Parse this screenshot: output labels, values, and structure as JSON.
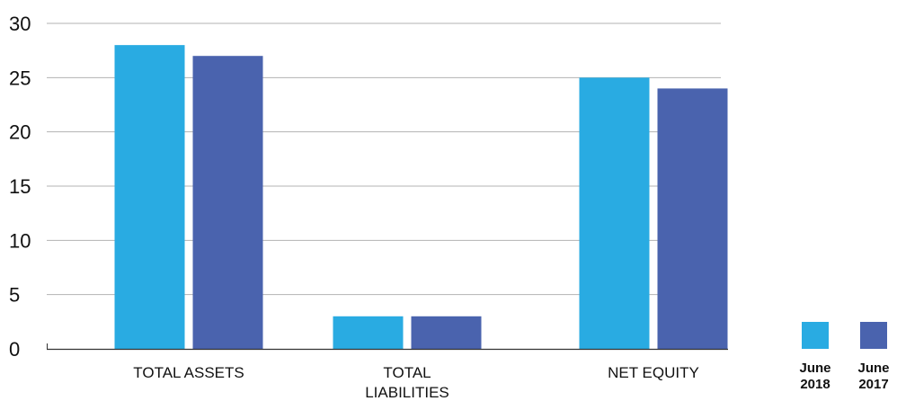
{
  "chart_data": {
    "type": "bar",
    "categories": [
      [
        "TOTAL ASSETS"
      ],
      [
        "TOTAL",
        "LIABILITIES"
      ],
      [
        "NET EQUITY"
      ]
    ],
    "series": [
      {
        "name": [
          "June",
          "2018"
        ],
        "color": "#29abe2",
        "values": [
          28,
          3,
          25
        ]
      },
      {
        "name": [
          "June",
          "2017"
        ],
        "color": "#4a63ae",
        "values": [
          27,
          3,
          24
        ]
      }
    ],
    "yticks": [
      "0",
      "5",
      "10",
      "15",
      "20",
      "25",
      "30"
    ],
    "ylim": [
      0,
      30
    ],
    "grid": true,
    "legend_position": "bottom-right"
  }
}
